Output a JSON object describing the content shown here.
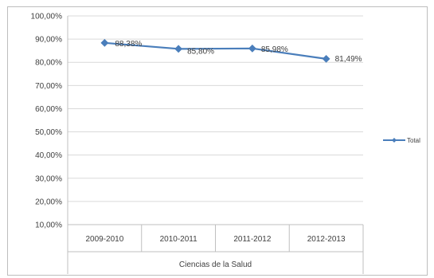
{
  "chart_data": {
    "type": "line",
    "categories": [
      "2009-2010",
      "2010-2011",
      "2011-2012",
      "2012-2013"
    ],
    "category_group": "Ciencias de la Salud",
    "series": [
      {
        "name": "Total",
        "values": [
          88.38,
          85.8,
          85.98,
          81.49
        ],
        "data_labels": [
          "88,38%",
          "85,80%",
          "85,98%",
          "81,49%"
        ],
        "color": "#4a7ebb"
      }
    ],
    "y_ticks": [
      10,
      20,
      30,
      40,
      50,
      60,
      70,
      80,
      90,
      100
    ],
    "y_tick_labels": [
      "10,00%",
      "20,00%",
      "30,00%",
      "40,00%",
      "50,00%",
      "60,00%",
      "70,00%",
      "80,00%",
      "90,00%",
      "100,00%"
    ],
    "ylim": [
      10,
      100
    ],
    "grid": true,
    "legend": "right",
    "title": "",
    "xlabel": "",
    "ylabel": ""
  }
}
